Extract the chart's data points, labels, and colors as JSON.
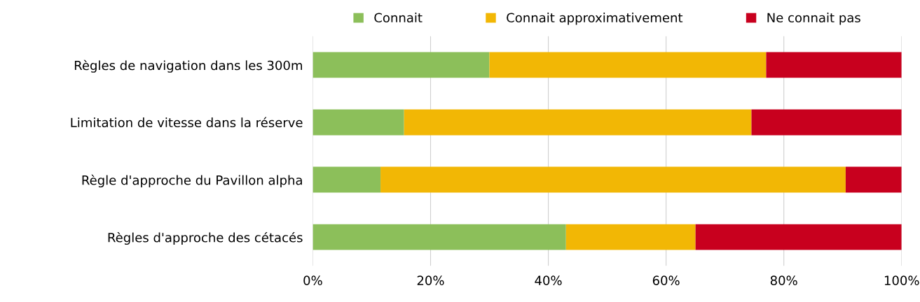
{
  "chart_data": {
    "type": "bar",
    "orientation": "horizontal",
    "stacked": true,
    "categories": [
      "Règles de navigation dans les 300m",
      "Limitation de vitesse dans la réserve",
      "Règle d'approche du Pavillon alpha",
      "Règles d'approche des cétacés"
    ],
    "series": [
      {
        "name": "Connait",
        "color": "#8cbf5a",
        "values": [
          30,
          15.5,
          11.5,
          43
        ]
      },
      {
        "name": "Connait approximativement",
        "color": "#f2b705",
        "values": [
          47,
          59,
          79,
          22
        ]
      },
      {
        "name": "Ne connait pas",
        "color": "#c8001e",
        "values": [
          23,
          25.5,
          9.5,
          35
        ]
      }
    ],
    "xlim": [
      0,
      100
    ],
    "xticks": [
      {
        "value": 0,
        "label": "0%"
      },
      {
        "value": 20,
        "label": "20%"
      },
      {
        "value": 40,
        "label": "40%"
      },
      {
        "value": 60,
        "label": "60%"
      },
      {
        "value": 80,
        "label": "80%"
      },
      {
        "value": 100,
        "label": "100%"
      }
    ],
    "grid": "x",
    "legend": "top"
  }
}
